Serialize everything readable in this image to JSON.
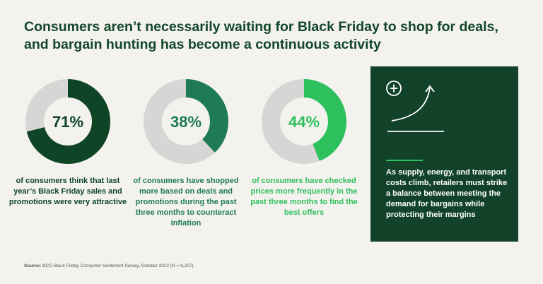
{
  "title": "Consumers aren’t necessarily waiting for Black Friday to shop for deals, and bargain hunting has become a continuous activity",
  "chart_data": {
    "type": "pie",
    "charts": [
      {
        "value": 71,
        "label": "71%",
        "caption": "of consumers think that last year’s Black Friday sales and promotions were very attractive",
        "color": "#0f4526"
      },
      {
        "value": 38,
        "label": "38%",
        "caption": "of consumers have shopped more based on deals and promotions during the past three months to counteract inflation",
        "color": "#1f7a56"
      },
      {
        "value": 44,
        "label": "44%",
        "caption": "of consumers have checked prices more frequently in the past three months to find the best offers",
        "color": "#2ec05c"
      }
    ],
    "remainder_color": "#d6d6d4"
  },
  "panel": {
    "text": "As supply, energy, and transport costs climb, retailers must strike a balance between meeting the demand for bargains while protecting their margins",
    "icon_plus": "plus-circle-icon",
    "icon_arrow": "growth-arrow-icon",
    "background": "#12432a",
    "accent": "#2ec05c"
  },
  "source": {
    "label": "Source:",
    "text": " BCG Black Friday Consumer Sentiment Survey, October 2022 (N = 9,207)."
  }
}
